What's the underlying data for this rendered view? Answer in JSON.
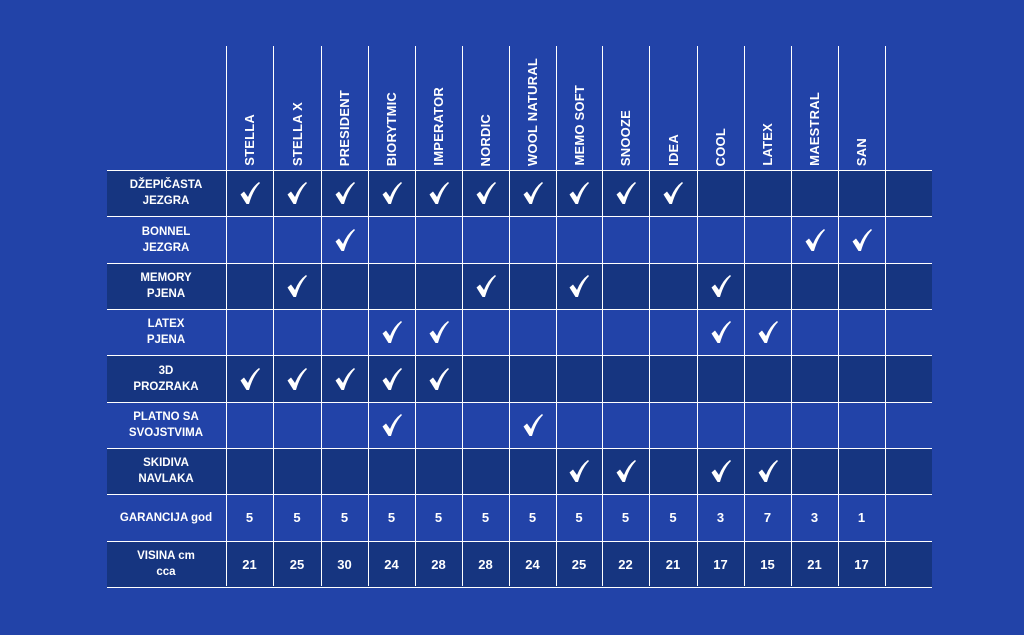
{
  "columns": [
    "STELLA",
    "STELLA X",
    "PRESIDENT",
    "BIORYTMIC",
    "IMPERATOR",
    "NORDIC",
    "WOOL NATURAL",
    "MEMO SOFT",
    "SNOOZE",
    "IDEA",
    "COOL",
    "LATEX",
    "MAESTRAL",
    "SAN"
  ],
  "feature_rows": [
    {
      "label": "DŽEPIČASTA\nJEZGRA",
      "checks": [
        true,
        true,
        true,
        true,
        true,
        true,
        true,
        true,
        true,
        true,
        false,
        false,
        false,
        false
      ]
    },
    {
      "label": "BONNEL\nJEZGRA",
      "checks": [
        false,
        false,
        true,
        false,
        false,
        false,
        false,
        false,
        false,
        false,
        false,
        false,
        true,
        true
      ]
    },
    {
      "label": "MEMORY\nPJENA",
      "checks": [
        false,
        true,
        false,
        false,
        false,
        true,
        false,
        true,
        false,
        false,
        true,
        false,
        false,
        false
      ]
    },
    {
      "label": "LATEX\nPJENA",
      "checks": [
        false,
        false,
        false,
        true,
        true,
        false,
        false,
        false,
        false,
        false,
        true,
        true,
        false,
        false
      ]
    },
    {
      "label": "3D\nPROZRAKA",
      "checks": [
        true,
        true,
        true,
        true,
        true,
        false,
        false,
        false,
        false,
        false,
        false,
        false,
        false,
        false
      ]
    },
    {
      "label": "PLATNO SA\nSVOJSTVIMA",
      "checks": [
        false,
        false,
        false,
        true,
        false,
        false,
        true,
        false,
        false,
        false,
        false,
        false,
        false,
        false
      ]
    },
    {
      "label": "SKIDIVA\nNAVLAKA",
      "checks": [
        false,
        false,
        false,
        false,
        false,
        false,
        false,
        true,
        true,
        false,
        true,
        true,
        false,
        false
      ]
    }
  ],
  "value_rows": [
    {
      "label": "GARANCIJA god",
      "values": [
        "5",
        "5",
        "5",
        "5",
        "5",
        "5",
        "5",
        "5",
        "5",
        "5",
        "3",
        "7",
        "3",
        "1"
      ]
    },
    {
      "label": "VISINA cm\ncca",
      "values": [
        "21",
        "25",
        "30",
        "24",
        "28",
        "28",
        "24",
        "25",
        "22",
        "21",
        "17",
        "15",
        "21",
        "17"
      ]
    }
  ],
  "icons": {
    "check": "checkmark-icon"
  },
  "colors": {
    "background": "#2243a8",
    "band": "#163580",
    "lines": "#ffffff",
    "text": "#ffffff"
  }
}
